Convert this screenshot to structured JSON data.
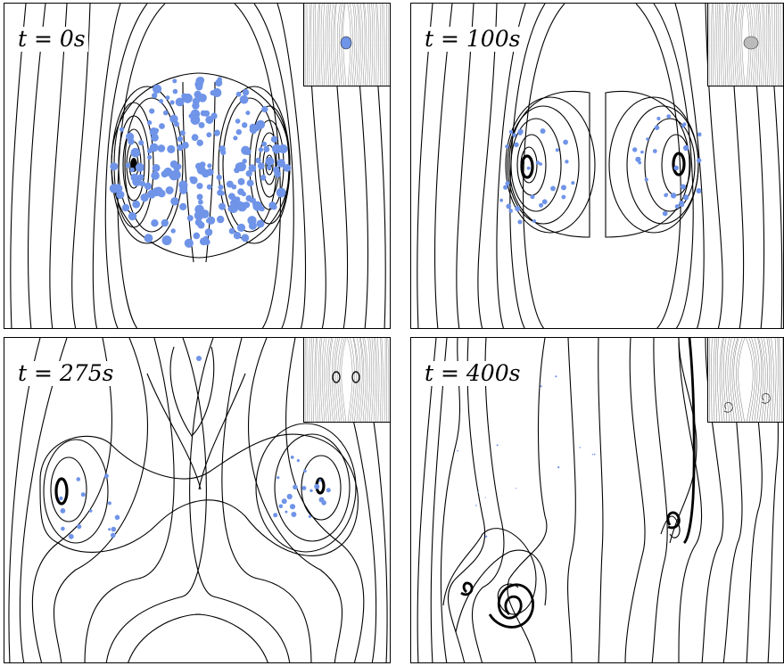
{
  "panels": [
    {
      "id": "p1",
      "label": "t = 0s"
    },
    {
      "id": "p2",
      "label": "t = 100s"
    },
    {
      "id": "p3",
      "label": "t = 275s"
    },
    {
      "id": "p4",
      "label": "t = 400s"
    }
  ],
  "colors": {
    "particle": "#6f94e8",
    "streamline": "#000000",
    "inset_lines": "#888888"
  }
}
